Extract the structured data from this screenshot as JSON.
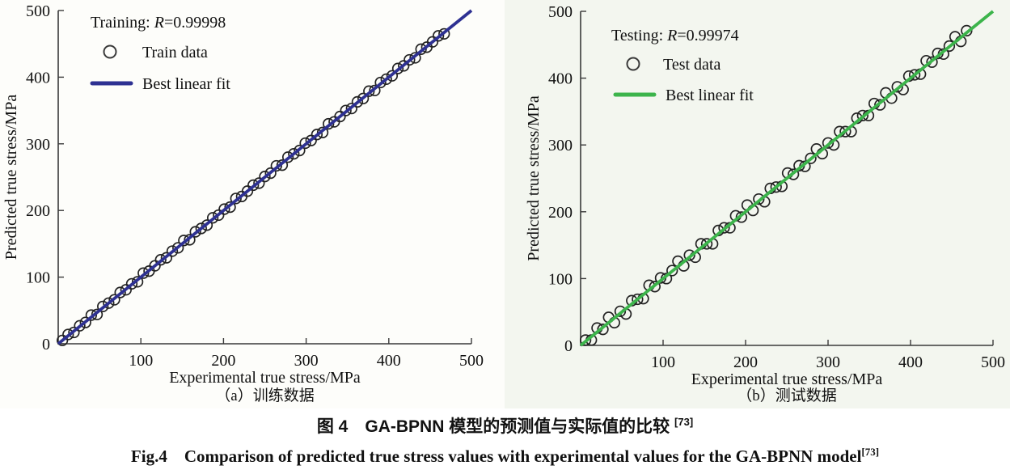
{
  "figure": {
    "caption_zh": "图 4　GA-BPNN 模型的预测值与实际值的比较 ",
    "caption_zh_sup": "[73]",
    "caption_en": "Fig.4　Comparison of predicted true stress values with experimental values for the GA-BPNN model",
    "caption_en_sup": "[73]",
    "subcaption_a": "（a）训练数据",
    "subcaption_b": "（b）测试数据"
  },
  "colors": {
    "axis": "#3a3a3a",
    "marker_stroke": "#222222",
    "train_fit_line": "#2e3192",
    "test_fit_line": "#3cb44b",
    "text": "#111111",
    "left_panel_bg": "#fdfdfa",
    "right_panel_bg": "#f3f6ef"
  },
  "chart_data": [
    {
      "type": "scatter",
      "title": "Training: R=0.99998",
      "title_parts": {
        "prefix": "Training: ",
        "italic": "R",
        "suffix": "=0.99998"
      },
      "xlabel": "Experimental true stress/MPa",
      "ylabel": "Predicted true stress/MPa",
      "xlim": [
        0,
        500
      ],
      "ylim": [
        0,
        500
      ],
      "xticks": [
        100,
        200,
        300,
        400,
        500
      ],
      "yticks": [
        0,
        100,
        200,
        300,
        400,
        500
      ],
      "grid": false,
      "legend_position": "top-left-inside",
      "sub_caption": "（a）训练数据",
      "series": [
        {
          "name": "Train data",
          "type": "scatter",
          "marker": "open-circle",
          "marker_color": "#222222",
          "points": [
            [
              5,
              5
            ],
            [
              12,
              14
            ],
            [
              19,
              17
            ],
            [
              26,
              27
            ],
            [
              33,
              32
            ],
            [
              40,
              43
            ],
            [
              47,
              44
            ],
            [
              54,
              56
            ],
            [
              61,
              61
            ],
            [
              68,
              66
            ],
            [
              75,
              77
            ],
            [
              82,
              81
            ],
            [
              89,
              90
            ],
            [
              96,
              93
            ],
            [
              103,
              106
            ],
            [
              110,
              109
            ],
            [
              117,
              117
            ],
            [
              124,
              126
            ],
            [
              131,
              129
            ],
            [
              138,
              139
            ],
            [
              145,
              144
            ],
            [
              152,
              155
            ],
            [
              159,
              156
            ],
            [
              166,
              168
            ],
            [
              173,
              173
            ],
            [
              180,
              178
            ],
            [
              187,
              189
            ],
            [
              194,
              193
            ],
            [
              201,
              202
            ],
            [
              208,
              205
            ],
            [
              215,
              218
            ],
            [
              222,
              221
            ],
            [
              229,
              229
            ],
            [
              236,
              238
            ],
            [
              243,
              241
            ],
            [
              250,
              251
            ],
            [
              257,
              256
            ],
            [
              264,
              267
            ],
            [
              271,
              268
            ],
            [
              278,
              280
            ],
            [
              285,
              285
            ],
            [
              292,
              290
            ],
            [
              299,
              301
            ],
            [
              306,
              305
            ],
            [
              313,
              314
            ],
            [
              320,
              317
            ],
            [
              327,
              330
            ],
            [
              334,
              333
            ],
            [
              341,
              341
            ],
            [
              348,
              350
            ],
            [
              355,
              353
            ],
            [
              362,
              363
            ],
            [
              369,
              368
            ],
            [
              376,
              379
            ],
            [
              383,
              380
            ],
            [
              390,
              392
            ],
            [
              397,
              397
            ],
            [
              404,
              402
            ],
            [
              411,
              413
            ],
            [
              418,
              417
            ],
            [
              425,
              426
            ],
            [
              432,
              429
            ],
            [
              439,
              442
            ],
            [
              446,
              445
            ],
            [
              453,
              453
            ],
            [
              460,
              462
            ],
            [
              467,
              465
            ]
          ]
        },
        {
          "name": "Best linear fit",
          "type": "line",
          "color": "#2e3192",
          "points": [
            [
              0,
              0
            ],
            [
              500,
              500
            ]
          ]
        }
      ]
    },
    {
      "type": "scatter",
      "title": "Testing: R=0.99974",
      "title_parts": {
        "prefix": "Testing: ",
        "italic": "R",
        "suffix": "=0.99974"
      },
      "xlabel": "Experimental true stress/MPa",
      "ylabel": "Predicted true stress/MPa",
      "xlim": [
        0,
        500
      ],
      "ylim": [
        0,
        500
      ],
      "xticks": [
        100,
        200,
        300,
        400,
        500
      ],
      "yticks": [
        0,
        100,
        200,
        300,
        400,
        500
      ],
      "grid": false,
      "legend_position": "top-left-inside",
      "sub_caption": "（b）测试数据",
      "series": [
        {
          "name": "Test data",
          "type": "scatter",
          "marker": "open-circle",
          "marker_color": "#222222",
          "points": [
            [
              6,
              8
            ],
            [
              13,
              8
            ],
            [
              20,
              26
            ],
            [
              27,
              24
            ],
            [
              34,
              42
            ],
            [
              41,
              34
            ],
            [
              48,
              51
            ],
            [
              55,
              47
            ],
            [
              62,
              67
            ],
            [
              69,
              69
            ],
            [
              76,
              70
            ],
            [
              83,
              90
            ],
            [
              90,
              88
            ],
            [
              97,
              101
            ],
            [
              104,
              100
            ],
            [
              111,
              112
            ],
            [
              118,
              126
            ],
            [
              125,
              119
            ],
            [
              132,
              135
            ],
            [
              139,
              132
            ],
            [
              146,
              152
            ],
            [
              153,
              152
            ],
            [
              160,
              152
            ],
            [
              167,
              172
            ],
            [
              174,
              176
            ],
            [
              181,
              176
            ],
            [
              188,
              194
            ],
            [
              195,
              192
            ],
            [
              202,
              210
            ],
            [
              209,
              202
            ],
            [
              216,
              219
            ],
            [
              223,
              215
            ],
            [
              230,
              235
            ],
            [
              237,
              237
            ],
            [
              244,
              238
            ],
            [
              251,
              258
            ],
            [
              258,
              256
            ],
            [
              265,
              269
            ],
            [
              272,
              268
            ],
            [
              279,
              280
            ],
            [
              286,
              294
            ],
            [
              293,
              287
            ],
            [
              300,
              303
            ],
            [
              307,
              300
            ],
            [
              314,
              320
            ],
            [
              321,
              320
            ],
            [
              328,
              320
            ],
            [
              335,
              340
            ],
            [
              342,
              344
            ],
            [
              349,
              344
            ],
            [
              356,
              362
            ],
            [
              363,
              360
            ],
            [
              370,
              378
            ],
            [
              377,
              370
            ],
            [
              384,
              387
            ],
            [
              391,
              383
            ],
            [
              398,
              403
            ],
            [
              405,
              405
            ],
            [
              412,
              406
            ],
            [
              419,
              426
            ],
            [
              426,
              424
            ],
            [
              433,
              437
            ],
            [
              440,
              436
            ],
            [
              447,
              448
            ],
            [
              454,
              462
            ],
            [
              461,
              455
            ],
            [
              468,
              471
            ]
          ]
        },
        {
          "name": "Best linear fit",
          "type": "line",
          "color": "#3cb44b",
          "points": [
            [
              0,
              0
            ],
            [
              500,
              500
            ]
          ]
        }
      ]
    }
  ]
}
